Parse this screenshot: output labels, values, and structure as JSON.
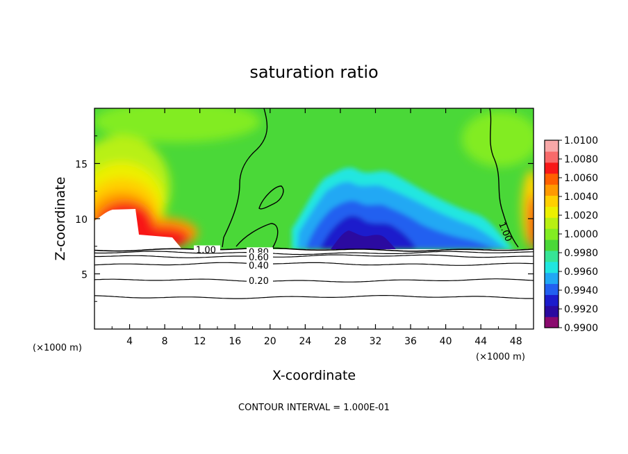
{
  "chart_data": {
    "type": "heatmap",
    "title": "saturation ratio",
    "xlabel": "X-coordinate",
    "ylabel": "Z-coordinate",
    "x_unit_left": "(×1000 m)",
    "x_unit_right": "(×1000 m)",
    "xlim": [
      0,
      50
    ],
    "ylim": [
      0,
      20
    ],
    "x_ticks": [
      4,
      8,
      12,
      16,
      20,
      24,
      28,
      32,
      36,
      40,
      44,
      48
    ],
    "y_ticks": [
      5,
      10,
      15
    ],
    "footer": "CONTOUR INTERVAL = 1.000E-01",
    "colorbar": {
      "labels": [
        "1.0100",
        "1.0080",
        "1.0060",
        "1.0040",
        "1.0020",
        "1.0000",
        "0.9980",
        "0.9960",
        "0.9940",
        "0.9920",
        "0.9900"
      ],
      "colors": [
        "#8a0a6e",
        "#2b0aa0",
        "#1c1ccc",
        "#2260f0",
        "#20a8f4",
        "#20e6e0",
        "#36e496",
        "#4ad838",
        "#82ec22",
        "#b8f012",
        "#ecf000",
        "#ffd000",
        "#ff9a00",
        "#ff6000",
        "#f81818",
        "#f86a6a",
        "#f8a8a8"
      ]
    },
    "contours": [
      {
        "label": "1.00",
        "z": 7.2
      },
      {
        "label": "0.80",
        "z": 6.9
      },
      {
        "label": "0.60",
        "z": 6.6
      },
      {
        "label": "0.40",
        "z": 5.9
      },
      {
        "label": "0.20",
        "z": 4.4
      },
      {
        "label": "",
        "z": 2.9
      }
    ],
    "cloud_top_contour_label": "1.00",
    "saturation_values_note_free": true
  }
}
